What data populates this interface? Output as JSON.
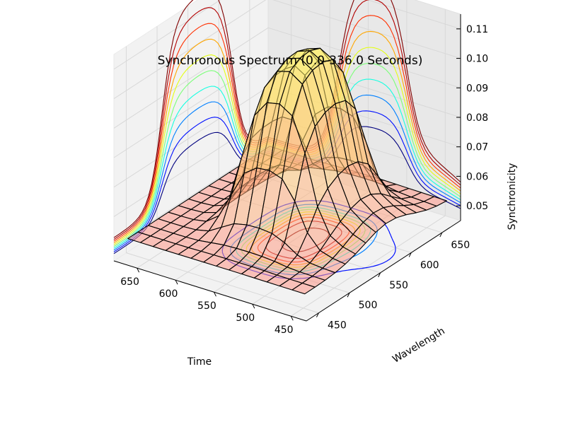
{
  "chart_data": {
    "type": "surface3d",
    "title": "Synchronous Spectrum (0.0-336.0 Seconds)",
    "xlabel": "Time",
    "ylabel": "Wavelength",
    "zlabel": "Synchronicity",
    "x_ticks": [
      "450",
      "500",
      "550",
      "600",
      "650"
    ],
    "y_ticks": [
      "450",
      "500",
      "550",
      "600",
      "650"
    ],
    "z_ticks": [
      "0.05",
      "0.06",
      "0.07",
      "0.08",
      "0.09",
      "0.10",
      "0.11"
    ],
    "xlim": [
      430,
      680
    ],
    "ylim": [
      430,
      680
    ],
    "zlim": [
      0.045,
      0.115
    ],
    "grid": true,
    "surface_colormap": "autumn",
    "contour_colormap": "jet",
    "contour_levels": [
      0.052,
      0.058,
      0.064,
      0.07,
      0.076,
      0.082,
      0.088,
      0.094,
      0.1,
      0.106
    ],
    "contour_colors": [
      "#00007f",
      "#0010ff",
      "#0080ff",
      "#15ffe1",
      "#7cff79",
      "#e4ff13",
      "#ffa700",
      "#ff3000",
      "#b20000",
      "#7f0000"
    ],
    "surface_model": {
      "base": 0.052,
      "plateau_amplitude": 0.057,
      "x_edge_low": 500,
      "x_edge_high": 588,
      "y_edge_low": 508,
      "y_edge_high": 622,
      "edge_sharpness": 10,
      "bump_amplitude": 0.008,
      "bump_x": 470,
      "bump_y": 575,
      "bump_spread": 38
    }
  }
}
